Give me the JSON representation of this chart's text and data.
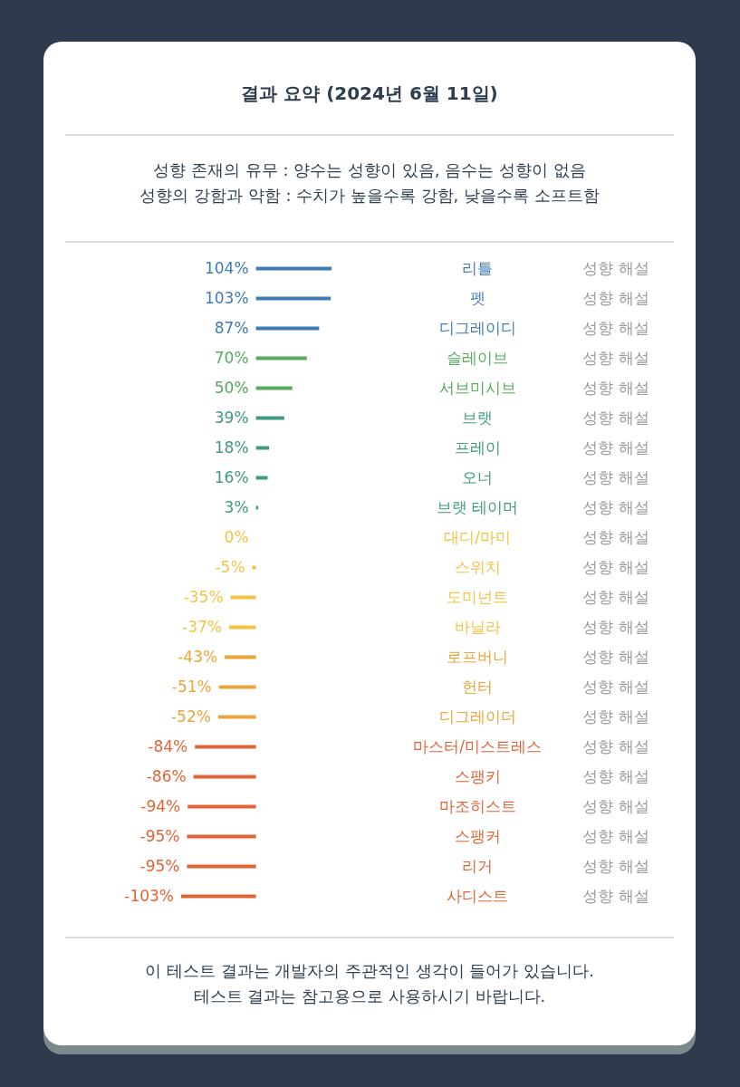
{
  "chart_data": {
    "type": "bar",
    "orientation": "horizontal",
    "title": "결과 요약 (2024년 6월 11일)",
    "categories": [
      "리틀",
      "펫",
      "디그레이디",
      "슬레이브",
      "서브미시브",
      "브랫",
      "프레이",
      "오너",
      "브랫 테이머",
      "대디/마미",
      "스위치",
      "도미넌트",
      "바닐라",
      "로프버니",
      "헌터",
      "디그레이더",
      "마스터/미스트레스",
      "스팽키",
      "마조히스트",
      "스팽커",
      "리거",
      "사디스트"
    ],
    "values": [
      104,
      103,
      87,
      70,
      50,
      39,
      18,
      16,
      3,
      0,
      -5,
      -35,
      -37,
      -43,
      -51,
      -52,
      -84,
      -86,
      -94,
      -95,
      -95,
      -103
    ],
    "value_labels": [
      "104%",
      "103%",
      "87%",
      "70%",
      "50%",
      "39%",
      "18%",
      "16%",
      "3%",
      "0%",
      "-5%",
      "-35%",
      "-37%",
      "-43%",
      "-51%",
      "-52%",
      "-84%",
      "-86%",
      "-94%",
      "-95%",
      "-95%",
      "-103%"
    ],
    "colors": [
      "#3f7cb6",
      "#3f7cb6",
      "#3f7cb6",
      "#55ab5e",
      "#55ab5e",
      "#409a82",
      "#409a82",
      "#409a82",
      "#409a82",
      "#f3c443",
      "#f3c443",
      "#f3c443",
      "#f3c443",
      "#eba53a",
      "#eba53a",
      "#eba53a",
      "#df6537",
      "#df6537",
      "#df6537",
      "#df6537",
      "#df6537",
      "#df6537"
    ],
    "annotations": [
      "성향 존재의 유무 : 양수는 성향이 있음, 음수는 성향이 없음",
      "성향의 강함과 약함 : 수치가 높을수록 강함, 낮을수록 소프트함",
      "이 테스트 결과는 개발자의 주관적인 생각이 들어가 있습니다.",
      "테스트 결과는 참고용으로 사용하시기 바랍니다.",
      "성향 해설",
      "성향 해설",
      "성향 해설",
      "성향 해설",
      "성향 해설",
      "성향 해설",
      "성향 해설",
      "성향 해설",
      "성향 해설",
      "성향 해설",
      "성향 해설",
      "성향 해설",
      "성향 해설",
      "성향 해설",
      "성향 해설",
      "성향 해설",
      "성향 해설",
      "성향 해설",
      "성향 해설",
      "성향 해설",
      "성향 해설",
      "성향 해설"
    ]
  }
}
